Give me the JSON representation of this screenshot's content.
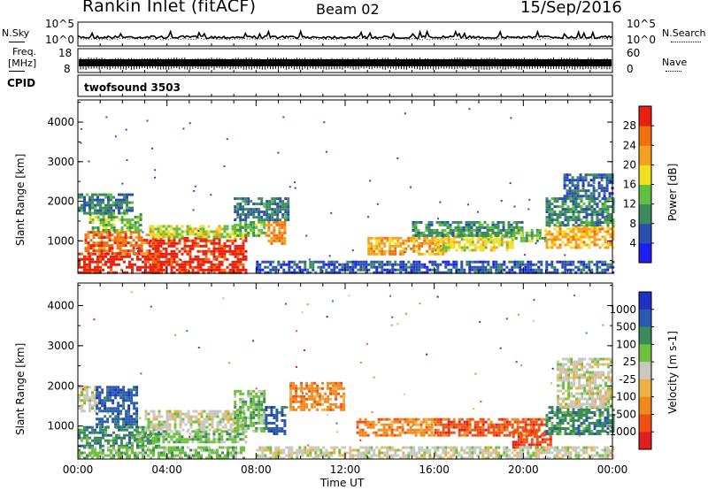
{
  "header": {
    "station": "Rankin Inlet (fitACF)",
    "beam": "Beam 02",
    "date": "15/Sep/2016"
  },
  "noise_panel": {
    "left_label": "N.Sky",
    "right_label": "N.Search",
    "tick_top": "10^5",
    "tick_bottom": "10^0"
  },
  "freq_panel": {
    "left_label_line1": "Freq.",
    "left_label_line2": "[MHz]",
    "right_label": "Nave",
    "left_tick_top": "18",
    "left_tick_bottom": "8",
    "right_tick_top": "60",
    "right_tick_bottom": "0"
  },
  "cpid_panel": {
    "label": "CPID",
    "value": "twofsound 3503"
  },
  "colors": {
    "power": [
      "#1e1ef0",
      "#2a4fb0",
      "#3d8a5e",
      "#5fc040",
      "#f0e020",
      "#f5a020",
      "#f07010",
      "#e82010"
    ],
    "velocity": [
      "#e02020",
      "#f05010",
      "#f08a20",
      "#f0b040",
      "#c8c8c0",
      "#70c040",
      "#3a8a5a",
      "#2a5ab0",
      "#2030c0"
    ]
  },
  "chart_data": [
    {
      "type": "heatmap",
      "name": "power",
      "ylabel": "Slant Range [km]",
      "ylim": [
        180,
        4560
      ],
      "xlim_hours": [
        0,
        24
      ],
      "yticks": [
        "1000",
        "2000",
        "3000",
        "4000"
      ],
      "xticks": [
        "00:00",
        "04:00",
        "08:00",
        "12:00",
        "16:00",
        "20:00",
        "00:00"
      ],
      "colorbar": {
        "label": "Power [dB]",
        "ticks": [
          "4",
          "8",
          "12",
          "16",
          "20",
          "24",
          "28"
        ],
        "range": [
          0,
          32
        ]
      },
      "series": [
        {
          "t0": 0,
          "t1": 3.8,
          "r0": 200,
          "r1": 700,
          "level": 31
        },
        {
          "t0": 0.3,
          "t1": 3.2,
          "r0": 700,
          "r1": 1250,
          "level": 26
        },
        {
          "t0": 0.5,
          "t1": 2.8,
          "r0": 1250,
          "r1": 1700,
          "level": 14
        },
        {
          "t0": 0,
          "t1": 2.5,
          "r0": 1700,
          "r1": 2200,
          "level": 9
        },
        {
          "t0": 3.2,
          "t1": 7.5,
          "r0": 200,
          "r1": 1100,
          "level": 30
        },
        {
          "t0": 3.2,
          "t1": 7.5,
          "r0": 1100,
          "r1": 1400,
          "level": 17
        },
        {
          "t0": 7,
          "t1": 8.4,
          "r0": 1100,
          "r1": 1500,
          "level": 13
        },
        {
          "t0": 8.4,
          "t1": 9.3,
          "r0": 900,
          "r1": 1500,
          "level": 24
        },
        {
          "t0": 7,
          "t1": 9.5,
          "r0": 1500,
          "r1": 2100,
          "level": 9
        },
        {
          "t0": 13,
          "t1": 16.5,
          "r0": 650,
          "r1": 1100,
          "level": 22
        },
        {
          "t0": 16,
          "t1": 19.5,
          "r0": 750,
          "r1": 1200,
          "level": 18
        },
        {
          "t0": 15,
          "t1": 20,
          "r0": 1150,
          "r1": 1500,
          "level": 10
        },
        {
          "t0": 19.5,
          "t1": 21,
          "r0": 1000,
          "r1": 1300,
          "level": 14
        },
        {
          "t0": 21,
          "t1": 24,
          "r0": 800,
          "r1": 1400,
          "level": 21
        },
        {
          "t0": 21,
          "t1": 24,
          "r0": 1400,
          "r1": 2100,
          "level": 10
        },
        {
          "t0": 21.8,
          "t1": 24,
          "r0": 2100,
          "r1": 2700,
          "level": 7
        },
        {
          "t0": 8,
          "t1": 24,
          "r0": 200,
          "r1": 500,
          "level": 6
        }
      ]
    },
    {
      "type": "heatmap",
      "name": "velocity",
      "ylabel": "Slant Range [km]",
      "xlabel": "Time UT",
      "ylim": [
        180,
        4560
      ],
      "xlim_hours": [
        0,
        24
      ],
      "yticks": [
        "1000",
        "2000",
        "3000",
        "4000"
      ],
      "xticks": [
        "00:00",
        "04:00",
        "08:00",
        "12:00",
        "16:00",
        "20:00",
        "00:00"
      ],
      "colorbar": {
        "label": "Velocity [m s-1]",
        "ticks": [
          "1000",
          "500",
          "100",
          "25",
          "-25",
          "-100",
          "-500",
          "-1000"
        ]
      },
      "series": [
        {
          "t0": 0,
          "t1": 1,
          "r0": 1400,
          "r1": 2000,
          "cls": 4
        },
        {
          "t0": 0.8,
          "t1": 2.6,
          "r0": 1000,
          "r1": 2000,
          "cls": 7
        },
        {
          "t0": 0,
          "t1": 3.6,
          "r0": 500,
          "r1": 1000,
          "cls": 6
        },
        {
          "t0": 0,
          "t1": 7.5,
          "r0": 200,
          "r1": 500,
          "cls": 5
        },
        {
          "t0": 2.6,
          "t1": 7.5,
          "r0": 600,
          "r1": 900,
          "cls": 5
        },
        {
          "t0": 3,
          "t1": 7.5,
          "r0": 900,
          "r1": 1400,
          "cls": 4
        },
        {
          "t0": 7,
          "t1": 8.4,
          "r0": 900,
          "r1": 1900,
          "cls": 5
        },
        {
          "t0": 8.4,
          "t1": 9.3,
          "r0": 800,
          "r1": 1500,
          "cls": 7
        },
        {
          "t0": 9.5,
          "t1": 12,
          "r0": 1400,
          "r1": 2100,
          "cls": 2
        },
        {
          "t0": 12.5,
          "t1": 16,
          "r0": 750,
          "r1": 1200,
          "cls": 2
        },
        {
          "t0": 16,
          "t1": 21,
          "r0": 800,
          "r1": 1200,
          "cls": 1
        },
        {
          "t0": 19.5,
          "t1": 21.2,
          "r0": 500,
          "r1": 900,
          "cls": 1
        },
        {
          "t0": 21,
          "t1": 24,
          "r0": 800,
          "r1": 1500,
          "cls": 6
        },
        {
          "t0": 21.5,
          "t1": 24,
          "r0": 1500,
          "r1": 2700,
          "cls": 4
        },
        {
          "t0": 8,
          "t1": 24,
          "r0": 200,
          "r1": 500,
          "cls": 4
        }
      ]
    }
  ]
}
